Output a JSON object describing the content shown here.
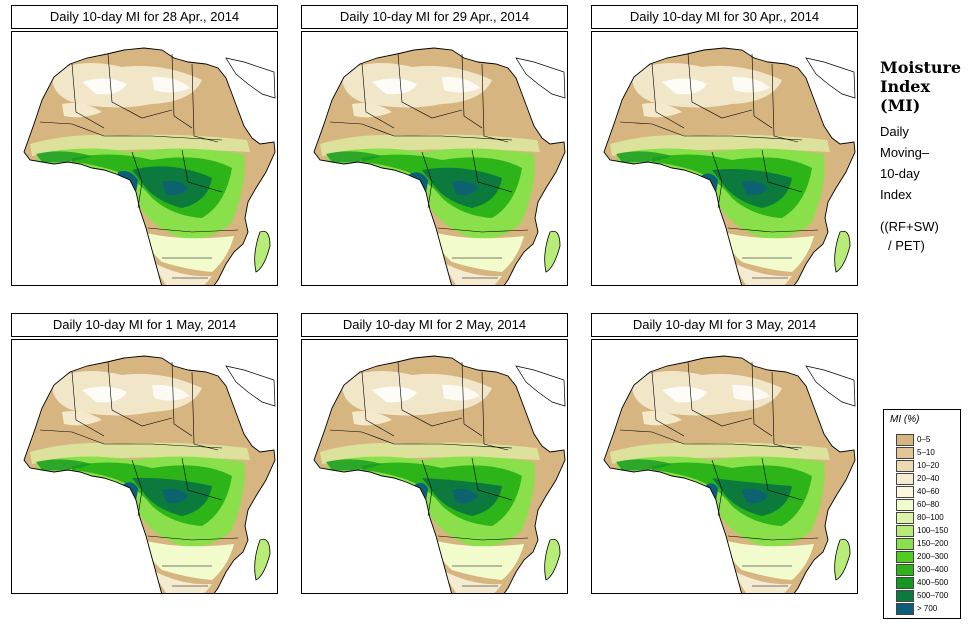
{
  "panels": [
    {
      "title": "Daily 10-day MI for  28 Apr., 2014"
    },
    {
      "title": "Daily 10-day MI for  29 Apr., 2014"
    },
    {
      "title": "Daily 10-day MI for  30 Apr., 2014"
    },
    {
      "title": "Daily 10-day MI for  1 May, 2014"
    },
    {
      "title": "Daily 10-day MI for  2 May, 2014"
    },
    {
      "title": "Daily 10-day MI for  3 May, 2014"
    }
  ],
  "side": {
    "title_line1": "Moisture",
    "title_line2": "Index",
    "title_line3": "(MI)",
    "sub_line1": "Daily",
    "sub_line2": "Moving–",
    "sub_line3": "10-day",
    "sub_line4": "Index",
    "formula_line1": "((RF+SW)",
    "formula_line2": "/ PET)"
  },
  "legend": {
    "title": "MI (%)",
    "entries": [
      {
        "label": "0–5",
        "color": "#d6b580"
      },
      {
        "label": "5–10",
        "color": "#e2c594"
      },
      {
        "label": "10–20",
        "color": "#ecd9b2"
      },
      {
        "label": "20–40",
        "color": "#f5ebd0"
      },
      {
        "label": "40–60",
        "color": "#fbf6dc"
      },
      {
        "label": "60–80",
        "color": "#f2fbcc"
      },
      {
        "label": "80–100",
        "color": "#def5a8"
      },
      {
        "label": "100–150",
        "color": "#b8ec78"
      },
      {
        "label": "150–200",
        "color": "#8ae04a"
      },
      {
        "label": "200–300",
        "color": "#52cc1e"
      },
      {
        "label": "300–400",
        "color": "#2cb418"
      },
      {
        "label": "400–500",
        "color": "#159820"
      },
      {
        "label": "500–700",
        "color": "#0b7a3c"
      },
      {
        "label": "> 700",
        "color": "#0d5f78"
      }
    ]
  }
}
